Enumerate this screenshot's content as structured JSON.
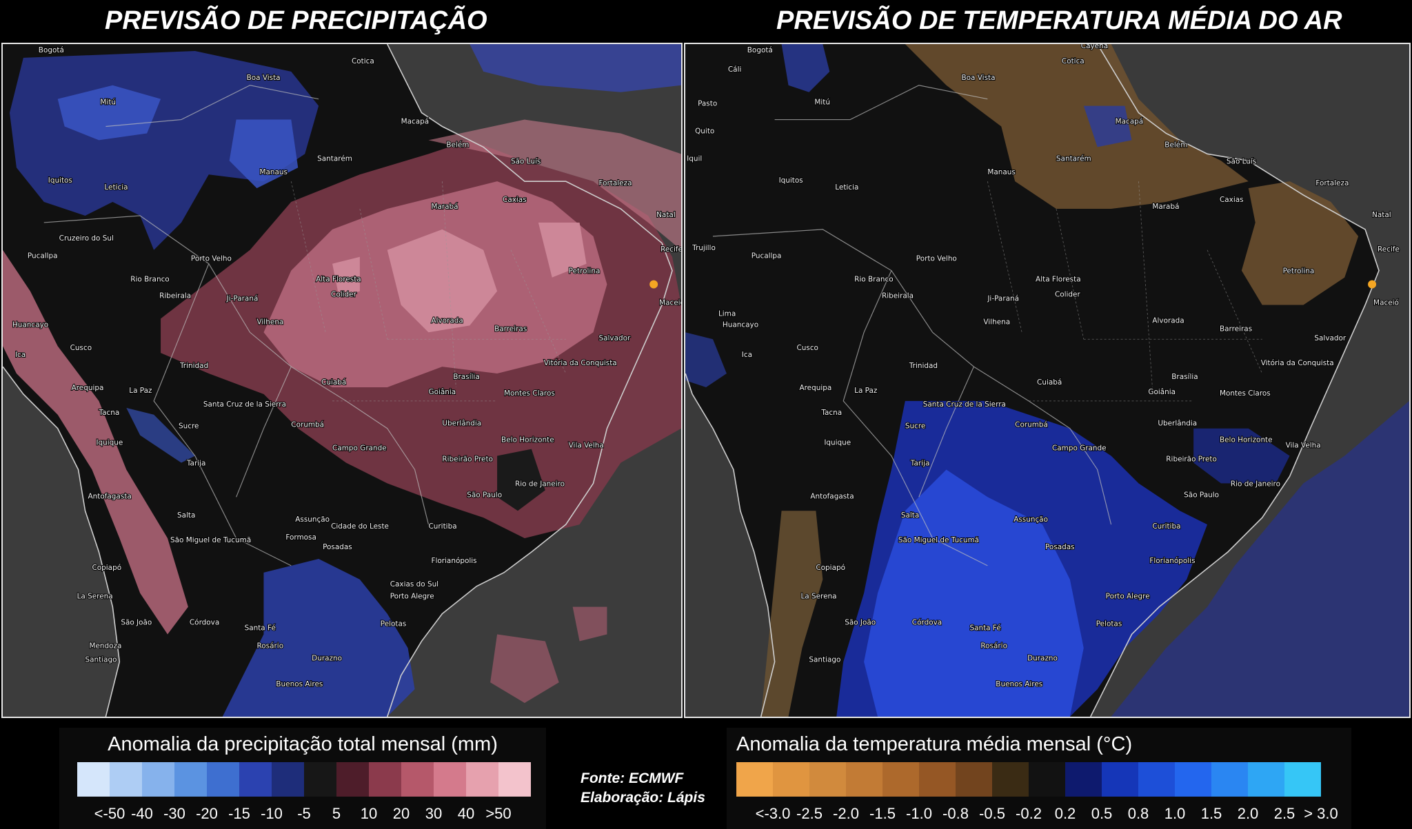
{
  "titles": {
    "left": "PREVISÃO DE PRECIPITAÇÃO",
    "right": "PREVISÃO DE TEMPERATURA MÉDIA DO AR"
  },
  "cities": [
    "Bogotá",
    "Cotica",
    "Boa Vista",
    "Mitú",
    "Macapá",
    "Belém",
    "São Luís",
    "Manaus",
    "Santarém",
    "Iquitos",
    "Leticia",
    "Caxias",
    "Fortaleza",
    "Marabá",
    "Natal",
    "Cruzeiro do Sul",
    "Recife",
    "Pucallpa",
    "Porto Velho",
    "Rio Branco",
    "Petrolina",
    "Ribeirala",
    "Alta Floresta",
    "Ji-Paraná",
    "Colider",
    "Maceió",
    "Huancayo",
    "Vilhena",
    "Alvorada",
    "Barreiras",
    "Salvador",
    "Cusco",
    "Ica",
    "Trinidad",
    "Vitória da Conquista",
    "Cuiabá",
    "Brasília",
    "Arequipa",
    "La Paz",
    "Goiânia",
    "Montes Claros",
    "Santa Cruz de la Sierra",
    "Tacna",
    "Sucre",
    "Corumbá",
    "Uberlândia",
    "Iquique",
    "Belo Horizonte",
    "Campo Grande",
    "Vila Velha",
    "Tarija",
    "Ribeirão Preto",
    "Rio de Janeiro",
    "Antofagasta",
    "São Paulo",
    "Salta",
    "Assunção",
    "Cidade do Leste",
    "Curitiba",
    "Formosa",
    "São Miguel de Tucumã",
    "Posadas",
    "Florianópolis",
    "Copiapó",
    "Caxias do Sul",
    "La Serena",
    "Porto Alegre",
    "São João",
    "Córdova",
    "Santa Fé",
    "Pelotas",
    "Mendoza",
    "Rosário",
    "Santiago",
    "Durazno",
    "Buenos Aires",
    "Quito",
    "Pasto",
    "Cáli",
    "Trujillo",
    "Lima",
    "Iquil",
    "Cayena"
  ],
  "legend_left": {
    "title": "Anomalia da precipitação total mensal (mm)",
    "colors": [
      "#d5e6fb",
      "#aecdf4",
      "#86b2ec",
      "#5b93e1",
      "#3e6fd0",
      "#2b42b0",
      "#1e2d7a",
      "#171717",
      "#4e1d2a",
      "#8b3a4c",
      "#b5586a",
      "#d47a8c",
      "#e6a1ae",
      "#f3c3cc"
    ],
    "ticks": [
      "<-50",
      "-40",
      "-30",
      "-20",
      "-15",
      "-10",
      "-5",
      "5",
      "10",
      "20",
      "30",
      "40",
      ">50"
    ]
  },
  "legend_right": {
    "title": "Anomalia da temperatura média mensal (°C)",
    "colors": [
      "#f0a54a",
      "#e09540",
      "#d18a3d",
      "#c27b35",
      "#ad692c",
      "#955725",
      "#72441e",
      "#3a2b14",
      "#121212",
      "#0e1a6e",
      "#1536b8",
      "#1d4fd8",
      "#2366ee",
      "#2a86f2",
      "#2ea6f4",
      "#36c6f6"
    ],
    "ticks": [
      "<-3.0",
      "-2.5",
      "-2.0",
      "-1.5",
      "-1.0",
      "-0.8",
      "-0.5",
      "-0.2",
      "0.2",
      "0.5",
      "0.8",
      "1.0",
      "1.5",
      "2.0",
      "2.5",
      "> 3.0"
    ]
  },
  "credits": {
    "source": "Fonte: ECMWF",
    "author": "Elaboração: Lápis"
  },
  "marker_color": "#f5a623"
}
